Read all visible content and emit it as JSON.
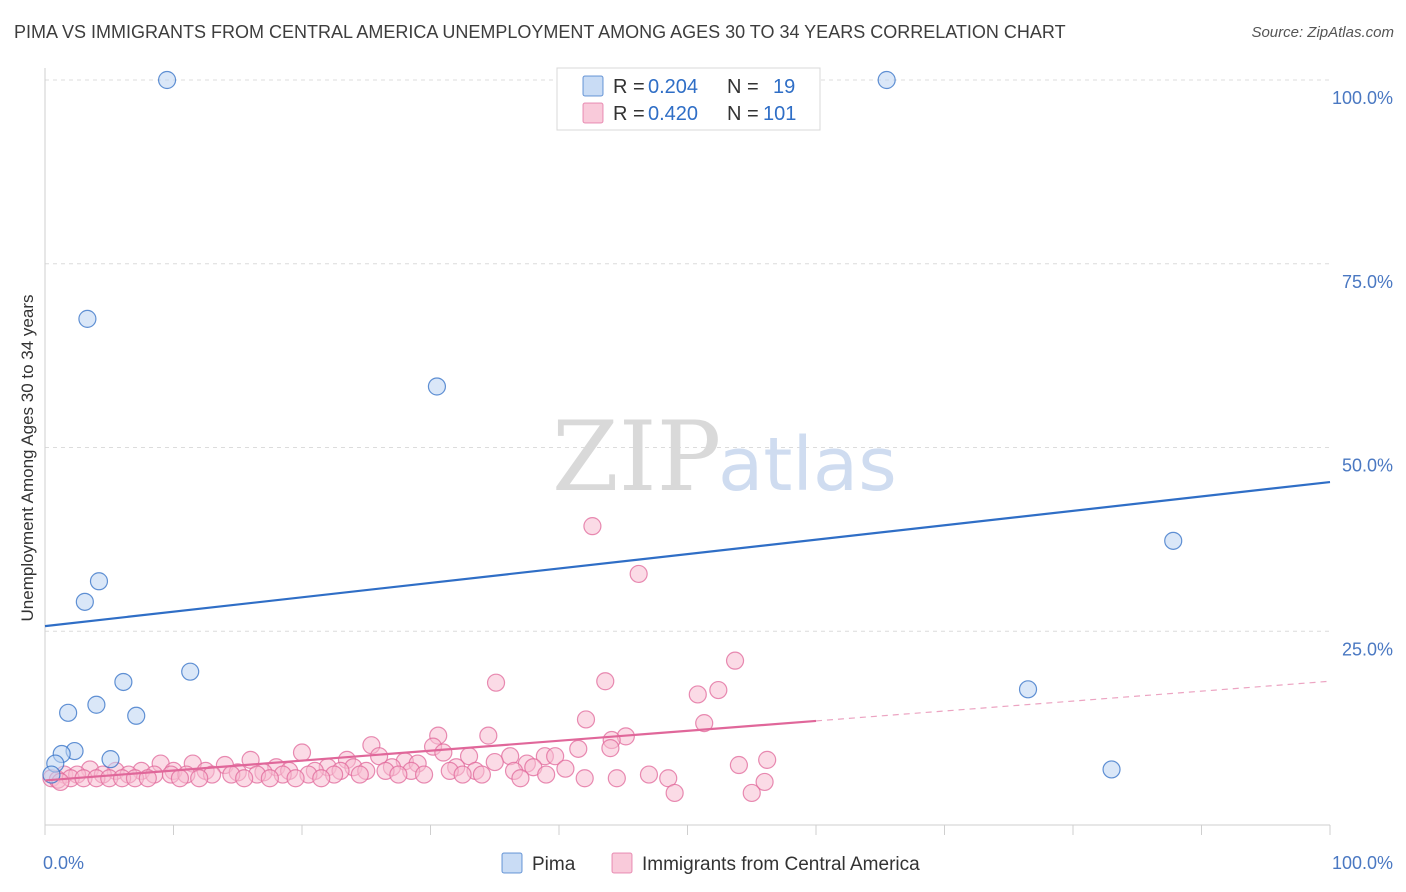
{
  "title": "PIMA VS IMMIGRANTS FROM CENTRAL AMERICA UNEMPLOYMENT AMONG AGES 30 TO 34 YEARS CORRELATION CHART",
  "source": "Source: ZipAtlas.com",
  "watermark": {
    "zip": "ZIP",
    "atlas": "atlas"
  },
  "colors": {
    "pima": "#2f6ec6",
    "pima_fill": "#bcd3f2",
    "central_america": "#e0679a",
    "central_america_fill": "#f7bdd1",
    "grid": "#dcdcdc",
    "tick_label": "#4a78c2"
  },
  "chart_data": {
    "type": "scatter",
    "title": "PIMA VS IMMIGRANTS FROM CENTRAL AMERICA UNEMPLOYMENT AMONG AGES 30 TO 34 YEARS CORRELATION CHART",
    "xlabel": "",
    "ylabel": "Unemployment Among Ages 30 to 34 years",
    "xlim": [
      0,
      100
    ],
    "ylim": [
      0,
      100
    ],
    "x_tick_labels": [
      "0.0%",
      "100.0%"
    ],
    "y_tick_labels": [
      "100.0%",
      "75.0%",
      "50.0%",
      "25.0%"
    ],
    "y_ticks": [
      100,
      75,
      50,
      25
    ],
    "grid": true,
    "legend_position": "top-center",
    "legend": [
      {
        "r_label": "R = ",
        "r_value": "0.204",
        "n_label": "N = ",
        "n_value": "19"
      },
      {
        "r_label": "R = ",
        "r_value": "0.420",
        "n_label": "N = ",
        "n_value": "101"
      }
    ],
    "bottom_legend": [
      "Pima",
      "Immigrants from Central America"
    ],
    "series": [
      {
        "name": "Pima",
        "trend": {
          "x0": 0,
          "y0": 25.7,
          "x1": 100,
          "y1": 45.3,
          "dashed_from": null
        },
        "points": [
          [
            9.5,
            100
          ],
          [
            65.5,
            100
          ],
          [
            3.3,
            67.5
          ],
          [
            30.5,
            58.3
          ],
          [
            87.8,
            37.3
          ],
          [
            4.2,
            31.8
          ],
          [
            3.1,
            29.0
          ],
          [
            11.3,
            19.5
          ],
          [
            6.1,
            18.1
          ],
          [
            76.5,
            17.1
          ],
          [
            4.0,
            15.0
          ],
          [
            1.8,
            13.9
          ],
          [
            7.1,
            13.5
          ],
          [
            2.3,
            8.7
          ],
          [
            1.3,
            8.3
          ],
          [
            5.1,
            7.6
          ],
          [
            0.8,
            7.0
          ],
          [
            83.0,
            6.2
          ],
          [
            0.5,
            5.5
          ]
        ]
      },
      {
        "name": "Immigrants from Central America",
        "trend": {
          "x0": 0,
          "y0": 4.7,
          "x1": 100,
          "y1": 18.2,
          "dashed_from": 60
        },
        "points": [
          [
            42.6,
            39.3
          ],
          [
            46.2,
            32.8
          ],
          [
            53.7,
            21.0
          ],
          [
            35.1,
            18.0
          ],
          [
            43.6,
            18.2
          ],
          [
            50.8,
            16.4
          ],
          [
            52.4,
            17.0
          ],
          [
            42.1,
            13.0
          ],
          [
            51.3,
            12.5
          ],
          [
            30.6,
            10.8
          ],
          [
            34.5,
            10.8
          ],
          [
            45.2,
            10.7
          ],
          [
            44.1,
            10.2
          ],
          [
            25.4,
            9.5
          ],
          [
            30.2,
            9.3
          ],
          [
            41.5,
            9.0
          ],
          [
            44.0,
            9.1
          ],
          [
            20.0,
            8.5
          ],
          [
            31.0,
            8.5
          ],
          [
            26.0,
            8.0
          ],
          [
            33.0,
            8.0
          ],
          [
            36.2,
            8.0
          ],
          [
            38.9,
            8.0
          ],
          [
            39.7,
            8.0
          ],
          [
            56.2,
            7.5
          ],
          [
            16.0,
            7.5
          ],
          [
            23.5,
            7.5
          ],
          [
            28.0,
            7.3
          ],
          [
            29.0,
            7.0
          ],
          [
            35.0,
            7.2
          ],
          [
            37.5,
            7.0
          ],
          [
            9.0,
            7.0
          ],
          [
            11.5,
            7.0
          ],
          [
            14.0,
            6.8
          ],
          [
            18.0,
            6.5
          ],
          [
            22.0,
            6.5
          ],
          [
            24.0,
            6.5
          ],
          [
            27.0,
            6.5
          ],
          [
            32.0,
            6.5
          ],
          [
            38.0,
            6.5
          ],
          [
            40.5,
            6.3
          ],
          [
            54.0,
            6.8
          ],
          [
            3.5,
            6.2
          ],
          [
            5.5,
            6.0
          ],
          [
            7.5,
            6.0
          ],
          [
            10.0,
            6.0
          ],
          [
            12.5,
            6.0
          ],
          [
            15.0,
            5.8
          ],
          [
            17.0,
            5.8
          ],
          [
            19.0,
            6.0
          ],
          [
            21.0,
            6.0
          ],
          [
            23.0,
            6.0
          ],
          [
            25.0,
            6.0
          ],
          [
            26.5,
            6.0
          ],
          [
            28.5,
            6.0
          ],
          [
            31.5,
            6.0
          ],
          [
            33.5,
            6.0
          ],
          [
            36.5,
            6.0
          ],
          [
            1.5,
            5.5
          ],
          [
            2.5,
            5.5
          ],
          [
            4.5,
            5.5
          ],
          [
            6.5,
            5.5
          ],
          [
            8.5,
            5.5
          ],
          [
            9.8,
            5.5
          ],
          [
            11.0,
            5.5
          ],
          [
            13.0,
            5.5
          ],
          [
            14.5,
            5.5
          ],
          [
            16.5,
            5.5
          ],
          [
            18.5,
            5.5
          ],
          [
            20.5,
            5.5
          ],
          [
            22.5,
            5.5
          ],
          [
            24.5,
            5.5
          ],
          [
            27.5,
            5.5
          ],
          [
            29.5,
            5.5
          ],
          [
            32.5,
            5.5
          ],
          [
            34.0,
            5.5
          ],
          [
            39.0,
            5.5
          ],
          [
            42.0,
            5.0
          ],
          [
            47.0,
            5.5
          ],
          [
            0.5,
            5.0
          ],
          [
            1.0,
            4.8
          ],
          [
            2.0,
            5.0
          ],
          [
            3.0,
            5.0
          ],
          [
            4.0,
            5.0
          ],
          [
            5.0,
            5.0
          ],
          [
            6.0,
            5.0
          ],
          [
            7.0,
            5.0
          ],
          [
            8.0,
            5.0
          ],
          [
            10.5,
            5.0
          ],
          [
            12.0,
            5.0
          ],
          [
            15.5,
            5.0
          ],
          [
            17.5,
            5.0
          ],
          [
            19.5,
            5.0
          ],
          [
            21.5,
            5.0
          ],
          [
            37.0,
            5.0
          ],
          [
            44.5,
            5.0
          ],
          [
            48.5,
            5.0
          ],
          [
            56.0,
            4.5
          ],
          [
            1.2,
            4.5
          ],
          [
            49.0,
            3.0
          ],
          [
            55.0,
            3.0
          ]
        ]
      }
    ]
  }
}
